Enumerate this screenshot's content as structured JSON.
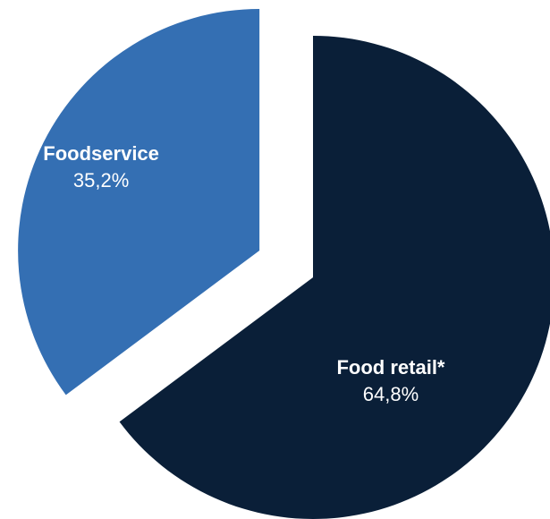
{
  "chart_data": {
    "type": "pie",
    "title": "",
    "slices": [
      {
        "label": "Food retail*",
        "value": 64.8,
        "display": "64,8%",
        "color": "#0a1f38",
        "text_color": "#ffffff",
        "exploded": false
      },
      {
        "label": "Foodservice",
        "value": 35.2,
        "display": "35,2%",
        "color": "#346fb3",
        "text_color": "#ffffff",
        "exploded": true
      }
    ],
    "start_angle_deg": 0,
    "direction": "clockwise"
  }
}
